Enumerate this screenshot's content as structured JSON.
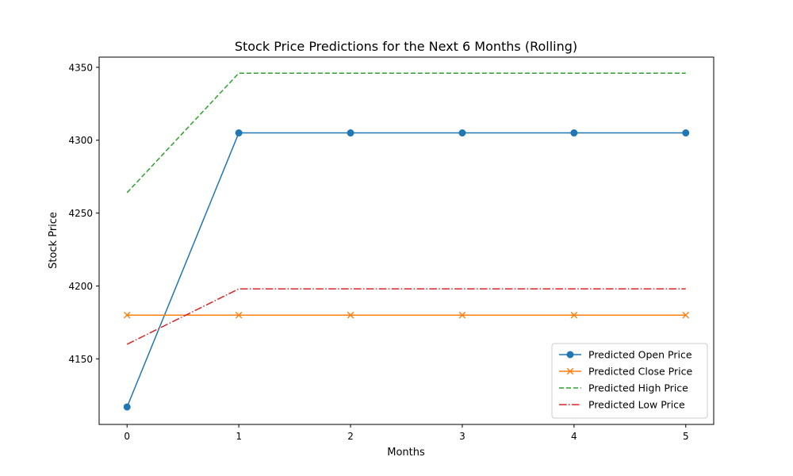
{
  "chart_data": {
    "type": "line",
    "title": "Stock Price Predictions for the Next 6 Months (Rolling)",
    "xlabel": "Months",
    "ylabel": "Stock Price",
    "x": [
      0,
      1,
      2,
      3,
      4,
      5
    ],
    "xlim": [
      -0.25,
      5.25
    ],
    "ylim": [
      4105,
      4357
    ],
    "xticks": [
      0,
      1,
      2,
      3,
      4,
      5
    ],
    "yticks": [
      4150,
      4200,
      4250,
      4300,
      4350
    ],
    "grid": false,
    "legend_position": "lower-right",
    "series": [
      {
        "name": "Predicted Open Price",
        "values": [
          4117,
          4305,
          4305,
          4305,
          4305,
          4305
        ],
        "color": "#1f77b4",
        "marker": "circle",
        "line_style": "solid"
      },
      {
        "name": "Predicted Close Price",
        "values": [
          4180,
          4180,
          4180,
          4180,
          4180,
          4180
        ],
        "color": "#ff7f0e",
        "marker": "x",
        "line_style": "solid"
      },
      {
        "name": "Predicted High Price",
        "values": [
          4264,
          4346,
          4346,
          4346,
          4346,
          4346
        ],
        "color": "#2ca02c",
        "marker": "none",
        "line_style": "dashed"
      },
      {
        "name": "Predicted Low Price",
        "values": [
          4160,
          4198,
          4198,
          4198,
          4198,
          4198
        ],
        "color": "#d62728",
        "marker": "none",
        "line_style": "dashdot"
      }
    ]
  }
}
